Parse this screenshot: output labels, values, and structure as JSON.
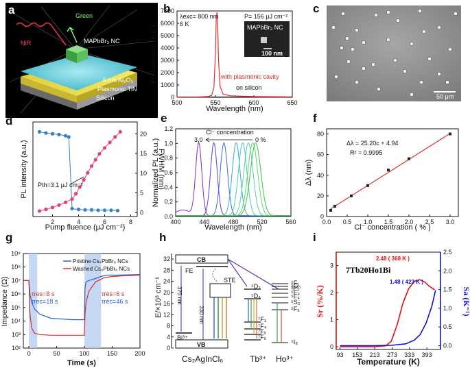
{
  "letters": {
    "a": "a",
    "b": "b",
    "c": "c",
    "d": "d",
    "e": "e",
    "f": "f",
    "g": "g",
    "h": "h",
    "i": "i"
  },
  "panel_a": {
    "green": "Green",
    "nir": "NIR",
    "nc": "MAPbBr₃ NC",
    "al2o3": "5 nm Al₂O₃",
    "tin": "Plasmonic TiN",
    "si": "Silicon"
  },
  "panel_b": {
    "lambda_exc": "λexc= 800 nm",
    "temp": "6 K",
    "power": "P= 156 μJ cm⁻²",
    "inset_label": "MAPbBr₃ NC",
    "scalebar": "100 nm",
    "label_cavity": "with plasmonic cavity",
    "label_silicon": "on silicon",
    "color_cavity": "#e03030"
  },
  "panel_c": {
    "scalebar": "50 μm"
  },
  "panel_d": {
    "pth": "Pth=3.1 μJ cm⁻²",
    "color_int": "#e0407a",
    "color_fwhm": "#3a7fc4"
  },
  "panel_e": {
    "concentration": "Cl⁻ concentration",
    "left": "3.0",
    "right": "0 %"
  },
  "panel_f": {
    "eq": "Δλ = 25.20c + 4.94",
    "r2": "R² = 0.9995"
  },
  "panel_g": {
    "legend_pristine": "Pristine Cs₄PbBr₆ NCs",
    "legend_washed": "Washed Cs₄PbBr₆ NCs",
    "tres1": "τres=8 s",
    "trec1": "τrec=18 s",
    "tres2": "τres=6 s",
    "trec2": "τrec=46 s"
  },
  "panel_h": {
    "cb": "CB",
    "vb": "VB",
    "fe": "FE",
    "ste": "STE",
    "bi": "Bi³⁺",
    "arrow1": "375 nm",
    "arrow2": "330 nm",
    "compound": "Cs₂AgInCl₆",
    "tb": "Tb³⁺",
    "ho": "Ho³⁺",
    "tb_levels": [
      "⁵D₃",
      "⁵D₄",
      "⁷F₃",
      "⁷F₄",
      "⁷F₅",
      "⁷F₆"
    ],
    "ho_levels": [
      "⁵F₁",
      "⁵G₆",
      "³F₂",
      "⁵F₃",
      "⁵F₄",
      "⁵S₂",
      "⁵F₅",
      "⁵I₈"
    ]
  },
  "panel_i": {
    "sample": "7Tb20Ho1Bi",
    "peak_sr": "2.48 ( 368 K )",
    "peak_sa": "1.48 ( 423 K )",
    "color_sr": "#e01010",
    "color_sa": "#1010d0"
  },
  "chart_data": [
    {
      "id": "b",
      "type": "line",
      "title": "",
      "xlabel": "Wavelength (nm)",
      "ylabel": "PL Intensity (a.u.)",
      "xlim": [
        500,
        650
      ],
      "ylim": [
        0,
        7000
      ],
      "xticks": [
        500,
        550,
        600,
        650
      ],
      "yticks": [
        0,
        1000,
        2000,
        3000,
        4000,
        5000,
        6000,
        7000
      ],
      "series": [
        {
          "name": "with plasmonic cavity",
          "x": [
            500,
            530,
            540,
            545,
            548,
            550,
            551,
            552,
            553,
            554,
            556,
            560,
            570,
            600,
            650
          ],
          "y": [
            30,
            40,
            60,
            150,
            800,
            3500,
            6300,
            6900,
            5600,
            3000,
            900,
            250,
            120,
            60,
            40
          ]
        },
        {
          "name": "on silicon",
          "x": [
            500,
            550,
            650
          ],
          "y": [
            20,
            30,
            20
          ]
        }
      ]
    },
    {
      "id": "d",
      "type": "scatter",
      "xlabel": "Pump fluence (μJ cm⁻²)",
      "ylabel_left": "PL intensity (a.u.)",
      "ylabel_right": "FWHM (nm)",
      "xlim": [
        0.5,
        8.5
      ],
      "ylim_right": [
        -1,
        23
      ],
      "xticks": [
        2,
        4,
        6,
        8
      ],
      "yticks_right": [
        0,
        5,
        10,
        15,
        20
      ],
      "series": [
        {
          "name": "PL intensity",
          "x": [
            1,
            1.5,
            2,
            2.5,
            3,
            3.5,
            3.8,
            4.1,
            4.4,
            4.7,
            5,
            5.3,
            5.6,
            6,
            6.4,
            6.8,
            7.2
          ],
          "y": [
            0.4,
            0.8,
            1.3,
            1.9,
            2.6,
            3.4,
            4.8,
            6.5,
            8.3,
            10.1,
            11.8,
            13.4,
            14.9,
            16.4,
            17.8,
            19.2,
            20.5
          ]
        },
        {
          "name": "FWHM",
          "x": [
            1,
            1.5,
            2,
            2.5,
            3,
            3.25,
            3.5,
            4,
            4.5,
            5,
            5.5,
            6,
            6.5,
            7
          ],
          "y": [
            20.5,
            20.2,
            20.0,
            19.8,
            19.5,
            19.2,
            1.0,
            0.8,
            0.7,
            0.7,
            0.6,
            0.6,
            0.6,
            0.5
          ]
        }
      ]
    },
    {
      "id": "e",
      "type": "line",
      "xlabel": "Wavelength (nm)",
      "ylabel": "Normalized PL (a.u.)",
      "xlim": [
        400,
        560
      ],
      "ylim": [
        0,
        1.2
      ],
      "xticks": [
        400,
        440,
        480,
        520,
        560
      ],
      "yticks": [
        0.0,
        0.2,
        0.4,
        0.6,
        0.8,
        1.0,
        1.2
      ],
      "peaks": [
        {
          "center": 432,
          "color": "#7a2cc9"
        },
        {
          "center": 453,
          "color": "#6040d8"
        },
        {
          "center": 467,
          "color": "#3c6ae0"
        },
        {
          "center": 484,
          "color": "#3aaad8"
        },
        {
          "center": 493,
          "color": "#48c8c0"
        },
        {
          "center": 501,
          "color": "#52d2a0"
        },
        {
          "center": 507,
          "color": "#60d870"
        },
        {
          "center": 511,
          "color": "#40c040"
        }
      ]
    },
    {
      "id": "f",
      "type": "scatter",
      "xlabel": "Cl⁻ concentration ( % )",
      "ylabel": "Δλ (nm)",
      "xlim": [
        0,
        3.2
      ],
      "ylim": [
        0,
        85
      ],
      "xticks": [
        0.0,
        0.5,
        1.0,
        1.5,
        2.0,
        2.5,
        3.0
      ],
      "yticks": [
        0,
        20,
        40,
        60,
        80
      ],
      "series": [
        {
          "name": "data",
          "x": [
            0.1,
            0.2,
            0.6,
            1.0,
            1.5,
            2.0,
            3.0
          ],
          "y": [
            6,
            10,
            20,
            30,
            45,
            56,
            80
          ]
        }
      ],
      "fit": {
        "slope": 25.2,
        "intercept": 4.94
      }
    },
    {
      "id": "g",
      "type": "line",
      "xlabel": "Time (s)",
      "ylabel": "Impedance (Ω)",
      "xlim": [
        -10,
        200
      ],
      "ylim_log10": [
        2,
        9
      ],
      "xticks": [
        0,
        50,
        100,
        150,
        200
      ],
      "yticks_log10": [
        2,
        3,
        4,
        5,
        6,
        7,
        8,
        9
      ],
      "series": [
        {
          "name": "Pristine Cs₄PbBr₆ NCs",
          "color": "#2a60d0",
          "x": [
            -10,
            0,
            2,
            5,
            10,
            20,
            40,
            60,
            80,
            100,
            101,
            103,
            108,
            120,
            130,
            140,
            160,
            200
          ],
          "logy": [
            7.0,
            7.0,
            6.0,
            5.4,
            4.9,
            4.5,
            4.2,
            4.15,
            4.1,
            4.1,
            6.5,
            6.9,
            7.0,
            7.15,
            7.3,
            7.4,
            7.4,
            7.45
          ]
        },
        {
          "name": "Washed Cs₄PbBr₆ NCs",
          "color": "#d03030",
          "x": [
            -10,
            0,
            2,
            5,
            10,
            20,
            40,
            60,
            80,
            100,
            101,
            103,
            108,
            120,
            135,
            150,
            170,
            200
          ],
          "logy": [
            7.0,
            7.0,
            4.5,
            3.5,
            3.1,
            3.0,
            2.95,
            2.95,
            2.95,
            2.95,
            4.5,
            5.4,
            6.2,
            6.9,
            7.2,
            7.3,
            7.35,
            7.4
          ]
        }
      ],
      "shaded": [
        [
          0,
          15
        ],
        [
          100,
          130
        ]
      ]
    },
    {
      "id": "i",
      "type": "line",
      "xlabel": "Temperature (K)",
      "ylabel_left": "Sr (%/K)",
      "ylabel_right": "Sa (K⁻¹)",
      "xlim": [
        80,
        440
      ],
      "ylim_left": [
        -0.1,
        3.5
      ],
      "ylim_right": [
        -0.1,
        2.5
      ],
      "xticks": [
        93,
        153,
        213,
        273,
        333,
        393
      ],
      "yticks_left": [
        0,
        1,
        2,
        3
      ],
      "yticks_right": [
        0.0,
        0.5,
        1.0,
        1.5,
        2.0,
        2.5
      ],
      "series": [
        {
          "name": "Sr",
          "axis": "left",
          "x": [
            93,
            150,
            213,
            250,
            270,
            290,
            310,
            330,
            350,
            368,
            385,
            400,
            420
          ],
          "y": [
            0.0,
            0.0,
            0.0,
            0.03,
            0.2,
            0.8,
            1.6,
            2.15,
            2.42,
            2.48,
            2.4,
            2.25,
            2.1
          ]
        },
        {
          "name": "Sa",
          "axis": "right",
          "x": [
            93,
            200,
            270,
            320,
            350,
            370,
            390,
            410,
            423
          ],
          "y": [
            0.0,
            0.0,
            0.01,
            0.05,
            0.15,
            0.3,
            0.6,
            1.05,
            1.48
          ]
        }
      ]
    }
  ]
}
